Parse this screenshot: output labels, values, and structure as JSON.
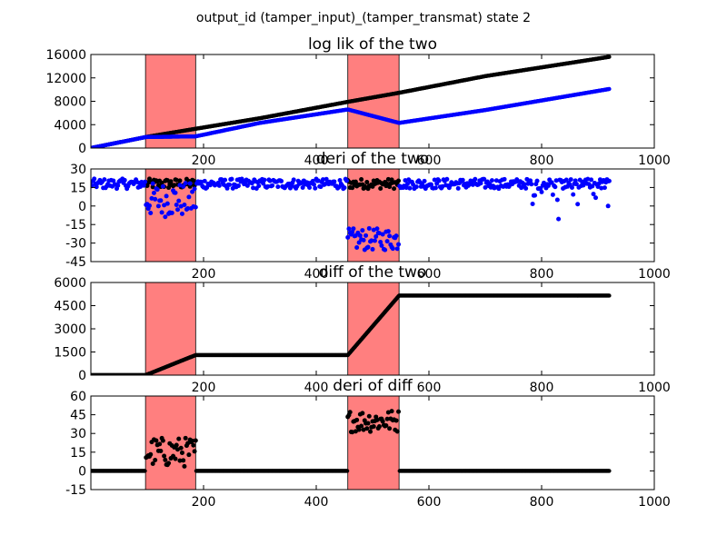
{
  "figure": {
    "suptitle": "output_id (tamper_input)_(tamper_transmat) state 2"
  },
  "colors": {
    "tamper_region": "#ff7f7f",
    "black_series": "#000000",
    "blue_series": "#0000ff"
  },
  "chart_data": [
    {
      "type": "scatter",
      "title": "log lik of the two",
      "xlim": [
        0,
        1000
      ],
      "ylim": [
        0,
        16000
      ],
      "xticks": [
        200,
        400,
        600,
        800,
        1000
      ],
      "yticks": [
        0,
        4000,
        8000,
        12000,
        16000
      ],
      "shaded_regions": [
        [
          97,
          186
        ],
        [
          456,
          547
        ]
      ],
      "series": [
        {
          "color": "#000000",
          "kind": "logl_black",
          "points": [
            [
              0,
              0
            ],
            [
              97,
              1880
            ],
            [
              186,
              3300
            ],
            [
              300,
              5100
            ],
            [
              456,
              7900
            ],
            [
              547,
              9450
            ],
            [
              700,
              12300
            ],
            [
              920,
              15600
            ]
          ]
        },
        {
          "color": "#0000ff",
          "kind": "logl_blue",
          "points": [
            [
              0,
              0
            ],
            [
              97,
              1880
            ],
            [
              186,
              2000
            ],
            [
              300,
              4300
            ],
            [
              456,
              6600
            ],
            [
              547,
              4300
            ],
            [
              700,
              6500
            ],
            [
              920,
              10100
            ]
          ]
        }
      ]
    },
    {
      "type": "scatter",
      "title": "deri of the two",
      "xlim": [
        0,
        1000
      ],
      "ylim": [
        -45,
        30
      ],
      "xticks": [
        200,
        400,
        600,
        800,
        1000
      ],
      "yticks": [
        -45,
        -30,
        -15,
        0,
        15,
        30
      ],
      "shaded_regions": [
        [
          97,
          186
        ],
        [
          456,
          547
        ]
      ],
      "series": [
        {
          "color": "#000000",
          "kind": "deri_black",
          "level": 18
        },
        {
          "color": "#0000ff",
          "kind": "deri_blue",
          "level": 18,
          "tamper1_level": 5,
          "tamper2_level": -27
        }
      ]
    },
    {
      "type": "scatter",
      "title": "diff of the two",
      "xlim": [
        0,
        1000
      ],
      "ylim": [
        0,
        6000
      ],
      "xticks": [
        200,
        400,
        600,
        800,
        1000
      ],
      "yticks": [
        0,
        1500,
        3000,
        4500,
        6000
      ],
      "shaded_regions": [
        [
          97,
          186
        ],
        [
          456,
          547
        ]
      ],
      "series": [
        {
          "color": "#000000",
          "kind": "diff",
          "points": [
            [
              0,
              0
            ],
            [
              97,
              0
            ],
            [
              186,
              1300
            ],
            [
              456,
              1300
            ],
            [
              547,
              5150
            ],
            [
              920,
              5150
            ]
          ]
        }
      ]
    },
    {
      "type": "scatter",
      "title": "deri of diff",
      "xlim": [
        0,
        1000
      ],
      "ylim": [
        -15,
        60
      ],
      "xticks": [
        200,
        400,
        600,
        800,
        1000
      ],
      "yticks": [
        -15,
        0,
        15,
        30,
        45,
        60
      ],
      "shaded_regions": [
        [
          97,
          186
        ],
        [
          456,
          547
        ]
      ],
      "series": [
        {
          "color": "#000000",
          "kind": "deri_diff",
          "baseline": 0,
          "tamper1_level": 15,
          "tamper2_level": 40
        }
      ]
    }
  ]
}
